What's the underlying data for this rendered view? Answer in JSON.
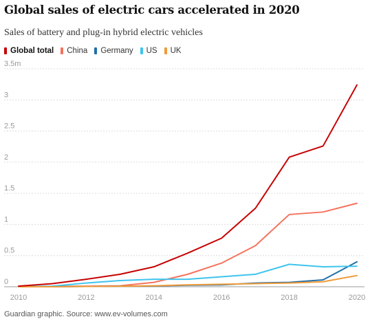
{
  "header": {
    "title": "Global sales of electric cars accelerated in 2020",
    "subtitle": "Sales of battery and plug-in hybrid electric vehicles"
  },
  "legend": [
    {
      "label": "Global total",
      "color": "#c70000",
      "bold": true
    },
    {
      "label": "China",
      "color": "#f5725d",
      "bold": false
    },
    {
      "label": "Germany",
      "color": "#1f6fa8",
      "bold": false
    },
    {
      "label": "US",
      "color": "#3ec4ee",
      "bold": false
    },
    {
      "label": "UK",
      "color": "#f19b38",
      "bold": false
    }
  ],
  "footer": {
    "source": "Guardian graphic. Source: www.ev-volumes.com"
  },
  "chart_data": {
    "type": "line",
    "title": "Global sales of electric cars accelerated in 2020",
    "subtitle": "Sales of battery and plug-in hybrid electric vehicles",
    "xlabel": "",
    "ylabel": "",
    "xlim": [
      2010,
      2020.3
    ],
    "ylim": [
      0,
      3.5
    ],
    "x": [
      2010,
      2011,
      2012,
      2013,
      2014,
      2015,
      2016,
      2017,
      2018,
      2019,
      2020
    ],
    "x_ticks": [
      2010,
      2012,
      2014,
      2016,
      2018,
      2020
    ],
    "x_tick_labels": [
      "2010",
      "2012",
      "2014",
      "2016",
      "2018",
      "2020"
    ],
    "y_ticks": [
      0,
      0.5,
      1,
      1.5,
      2,
      2.5,
      3,
      3.5
    ],
    "y_tick_labels": [
      "0",
      "0.5",
      "1",
      "1.5",
      "2",
      "2.5",
      "3",
      "3.5m"
    ],
    "grid": true,
    "series": [
      {
        "name": "China",
        "color": "#f5725d",
        "values": [
          0.0,
          0.005,
          0.01,
          0.015,
          0.07,
          0.2,
          0.38,
          0.66,
          1.16,
          1.2,
          1.34
        ]
      },
      {
        "name": "Germany",
        "color": "#1f6fa8",
        "values": [
          0.0,
          0.0,
          0.005,
          0.01,
          0.012,
          0.025,
          0.03,
          0.06,
          0.07,
          0.11,
          0.4
        ]
      },
      {
        "name": "US",
        "color": "#3ec4ee",
        "values": [
          0.0,
          0.01,
          0.06,
          0.1,
          0.12,
          0.12,
          0.16,
          0.2,
          0.36,
          0.32,
          0.33
        ]
      },
      {
        "name": "UK",
        "color": "#f19b38",
        "values": [
          0.0,
          0.0,
          0.005,
          0.008,
          0.015,
          0.03,
          0.04,
          0.05,
          0.06,
          0.08,
          0.18
        ]
      },
      {
        "name": "Global total",
        "color": "#c70000",
        "values": [
          0.01,
          0.05,
          0.12,
          0.2,
          0.32,
          0.54,
          0.78,
          1.26,
          2.08,
          2.26,
          3.24
        ]
      }
    ]
  }
}
